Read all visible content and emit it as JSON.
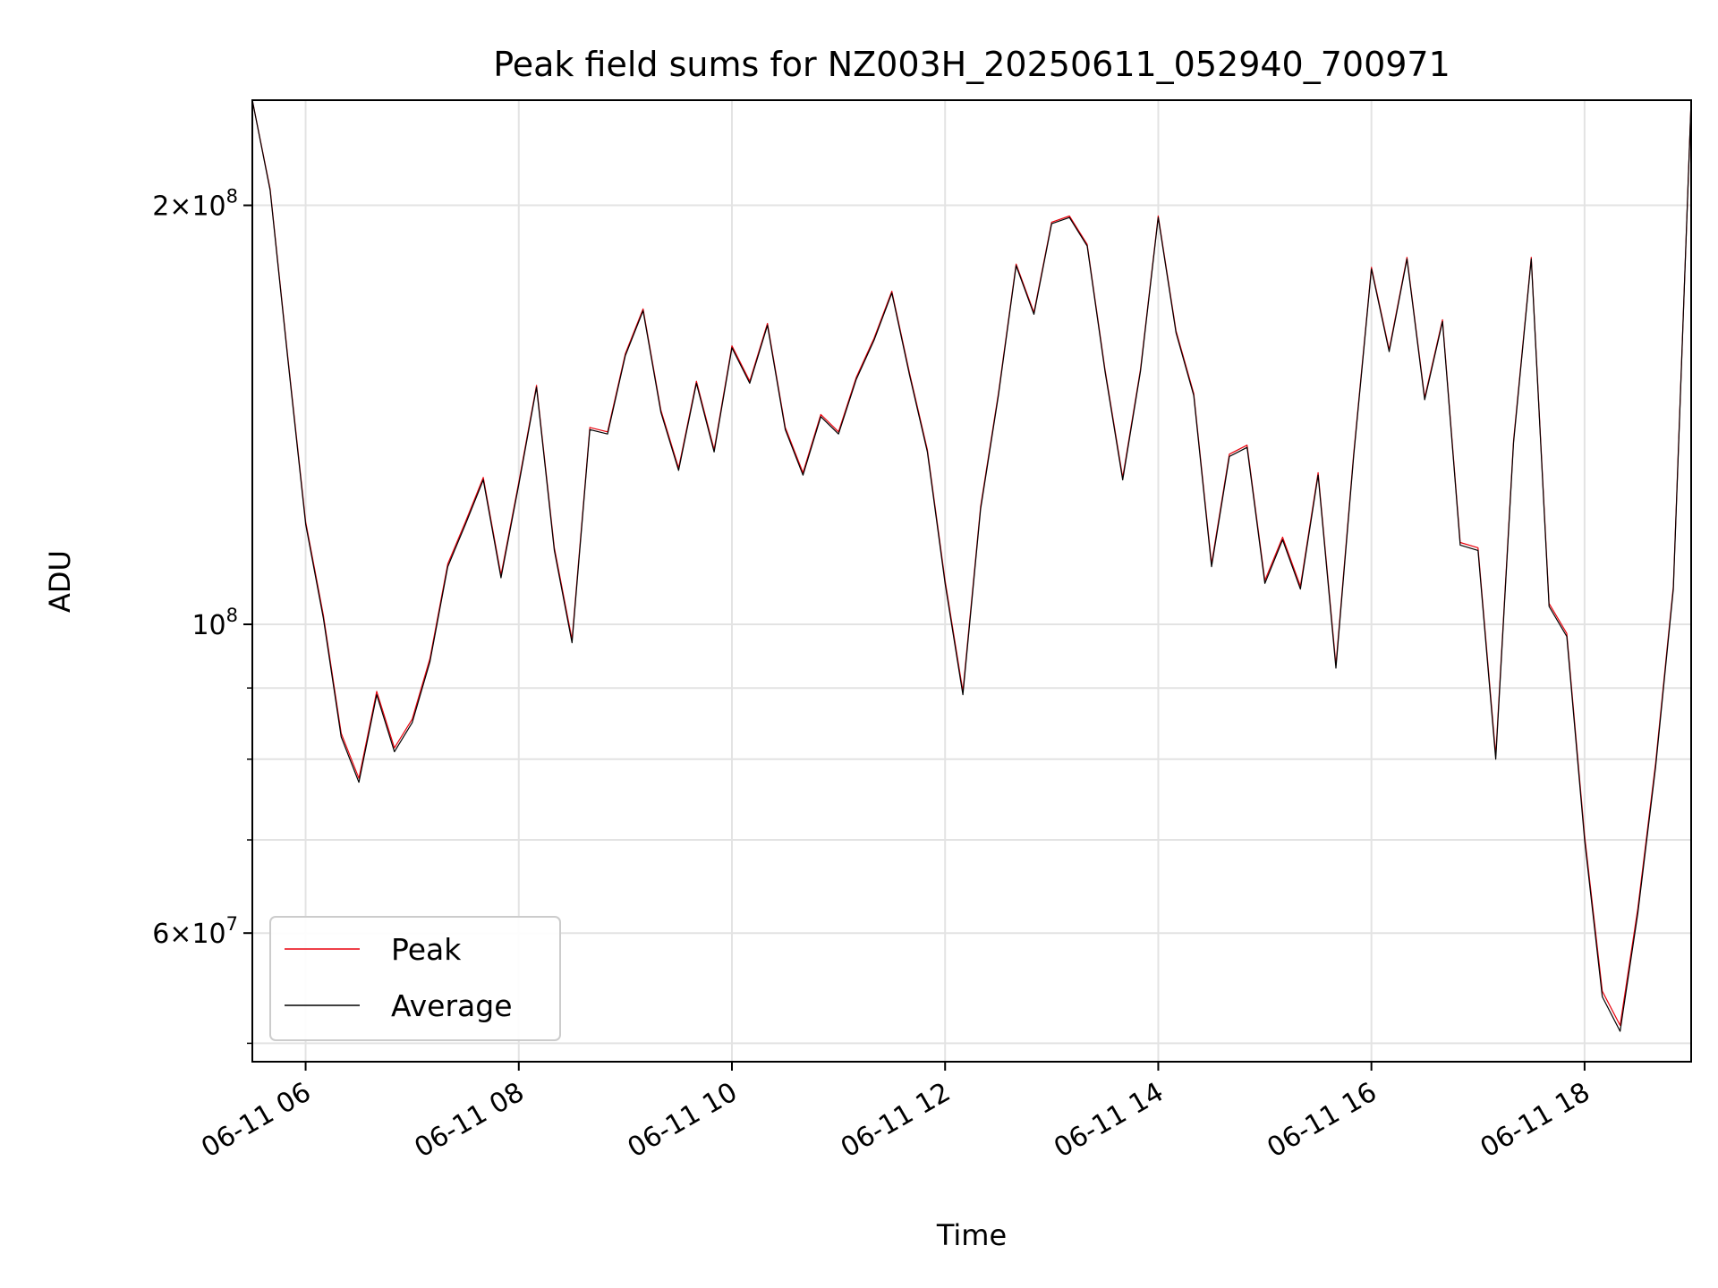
{
  "chart_data": {
    "type": "line",
    "title": "Peak field sums for NZ003H_20250611_052940_700971",
    "xlabel": "Time",
    "ylabel": "ADU",
    "yscale": "log",
    "grid": true,
    "legend_position": "lower-left",
    "xlim": [
      "2025-06-11 05:30",
      "2025-06-11 19:00"
    ],
    "ylim": [
      48500000,
      238000000
    ],
    "x_ticks": [
      "06-11 06",
      "06-11 08",
      "06-11 10",
      "06-11 12",
      "06-11 14",
      "06-11 16",
      "06-11 18"
    ],
    "x_tick_values": [
      "2025-06-11 06:00",
      "2025-06-11 08:00",
      "2025-06-11 10:00",
      "2025-06-11 12:00",
      "2025-06-11 14:00",
      "2025-06-11 16:00",
      "2025-06-11 18:00"
    ],
    "y_tick_labels": [
      {
        "value": 60000000,
        "mantissa": "6",
        "base": "10",
        "exp": "7"
      },
      {
        "value": 100000000,
        "mantissa": "",
        "base": "10",
        "exp": "8"
      },
      {
        "value": 200000000,
        "mantissa": "2",
        "base": "10",
        "exp": "8"
      }
    ],
    "y_minor_ticks": [
      50000000,
      70000000,
      80000000,
      90000000
    ],
    "series": [
      {
        "name": "Peak",
        "color": "#e8000b",
        "width": 1.2
      },
      {
        "name": "Average",
        "color": "#000000",
        "width": 1.2
      }
    ],
    "x": [
      "05:30",
      "05:40",
      "05:50",
      "06:00",
      "06:10",
      "06:20",
      "06:30",
      "06:40",
      "06:50",
      "07:00",
      "07:10",
      "07:20",
      "07:30",
      "07:40",
      "07:50",
      "08:00",
      "08:10",
      "08:20",
      "08:30",
      "08:40",
      "08:50",
      "09:00",
      "09:10",
      "09:20",
      "09:30",
      "09:40",
      "09:50",
      "10:00",
      "10:10",
      "10:20",
      "10:30",
      "10:40",
      "10:50",
      "11:00",
      "11:10",
      "11:20",
      "11:30",
      "11:40",
      "11:50",
      "12:00",
      "12:10",
      "12:20",
      "12:30",
      "12:40",
      "12:50",
      "13:00",
      "13:10",
      "13:20",
      "13:30",
      "13:40",
      "13:50",
      "14:00",
      "14:10",
      "14:20",
      "14:30",
      "14:40",
      "14:50",
      "15:00",
      "15:10",
      "15:20",
      "15:30",
      "15:40",
      "15:50",
      "16:00",
      "16:10",
      "16:20",
      "16:30",
      "16:40",
      "16:50",
      "17:00",
      "17:10",
      "17:20",
      "17:30",
      "17:40",
      "17:50",
      "18:00",
      "18:10",
      "18:20",
      "18:30",
      "18:40",
      "18:50",
      "19:00"
    ],
    "average": [
      238000000,
      205000000,
      155000000,
      118000000,
      101000000,
      83000000,
      77000000,
      89000000,
      81000000,
      85000000,
      94000000,
      110000000,
      118000000,
      127000000,
      108000000,
      126000000,
      148000000,
      113000000,
      97000000,
      138000000,
      137000000,
      156000000,
      168000000,
      142000000,
      129000000,
      149000000,
      133000000,
      158000000,
      149000000,
      164000000,
      138000000,
      128000000,
      141000000,
      137000000,
      150000000,
      160000000,
      173000000,
      151000000,
      133000000,
      107000000,
      89000000,
      121000000,
      146000000,
      181000000,
      167000000,
      194000000,
      196000000,
      187000000,
      152000000,
      127000000,
      152000000,
      196000000,
      162000000,
      146000000,
      110000000,
      132000000,
      134000000,
      107000000,
      115000000,
      106000000,
      128000000,
      93000000,
      132000000,
      180000000,
      157000000,
      183000000,
      145000000,
      165000000,
      114000000,
      113000000,
      80000000,
      135000000,
      183000000,
      103000000,
      98000000,
      70000000,
      54000000,
      51000000,
      62000000,
      79000000,
      106000000,
      238000000
    ],
    "peak": [
      238000000,
      205500000,
      155500000,
      118500000,
      101500000,
      83500000,
      77500000,
      89500000,
      81500000,
      85500000,
      94500000,
      110500000,
      118500000,
      127500000,
      108500000,
      126500000,
      148500000,
      113500000,
      97500000,
      138500000,
      137500000,
      156500000,
      168500000,
      142500000,
      129500000,
      149500000,
      133500000,
      158500000,
      149500000,
      164500000,
      138500000,
      128500000,
      141500000,
      137500000,
      150500000,
      160500000,
      173500000,
      151500000,
      133500000,
      107500000,
      89500000,
      121500000,
      146500000,
      181500000,
      167500000,
      194500000,
      196500000,
      187500000,
      152500000,
      127500000,
      152500000,
      196500000,
      162500000,
      146500000,
      110500000,
      132500000,
      134500000,
      107500000,
      115500000,
      106500000,
      128500000,
      93500000,
      132500000,
      180500000,
      157500000,
      183500000,
      145500000,
      165500000,
      114500000,
      113500000,
      80500000,
      135500000,
      183500000,
      103500000,
      98500000,
      70500000,
      54500000,
      51500000,
      62500000,
      79500000,
      106500000,
      238000000
    ]
  }
}
